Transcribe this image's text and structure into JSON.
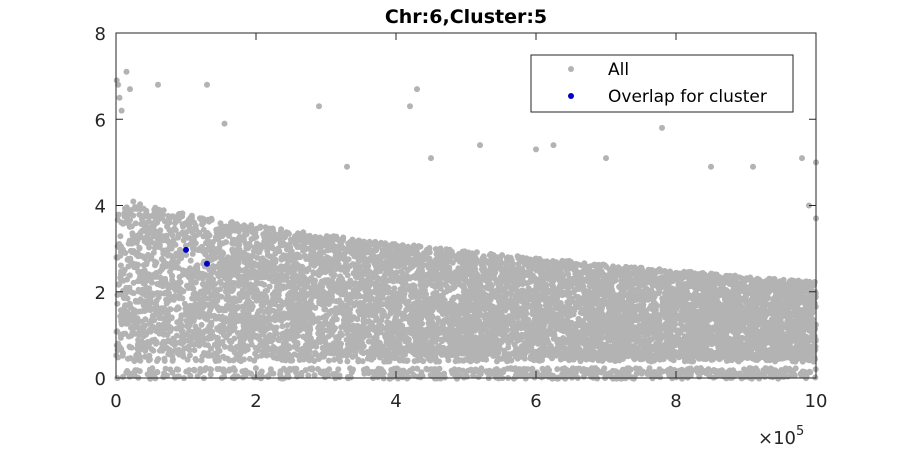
{
  "chart_data": {
    "type": "scatter",
    "title": "Chr:6,Cluster:5",
    "xlabel": "",
    "ylabel": "",
    "xlim": [
      0,
      1000000
    ],
    "ylim": [
      0,
      8
    ],
    "x_ticks": [
      0,
      2,
      4,
      6,
      8,
      10
    ],
    "y_ticks": [
      0,
      2,
      4,
      6,
      8
    ],
    "x_exponent_label": "×10",
    "x_exponent_power": "5",
    "grid": false,
    "legend_position": "top-right",
    "series": [
      {
        "name": "All",
        "color": "#b3b3b3",
        "note": "dense cloud of points; sample outliers listed",
        "points": [
          [
            1000,
            6.9
          ],
          [
            3000,
            6.8
          ],
          [
            5000,
            6.5
          ],
          [
            8000,
            6.2
          ],
          [
            15000,
            7.1
          ],
          [
            20000,
            6.7
          ],
          [
            60000,
            6.8
          ],
          [
            130000,
            6.8
          ],
          [
            155000,
            5.9
          ],
          [
            290000,
            6.3
          ],
          [
            420000,
            6.3
          ],
          [
            430000,
            6.7
          ],
          [
            600000,
            5.3
          ],
          [
            625000,
            5.4
          ],
          [
            780000,
            5.8
          ],
          [
            850000,
            4.9
          ],
          [
            980000,
            5.1
          ],
          [
            1000000,
            5.0
          ],
          [
            990000,
            4.0
          ],
          [
            1000000,
            3.7
          ],
          [
            450000,
            5.1
          ],
          [
            520000,
            5.4
          ],
          [
            700000,
            5.1
          ],
          [
            910000,
            4.9
          ],
          [
            330000,
            4.9
          ]
        ]
      },
      {
        "name": "Overlap for cluster",
        "color": "#0000cc",
        "points": [
          [
            100000,
            2.97
          ],
          [
            130000,
            2.65
          ]
        ]
      }
    ]
  }
}
